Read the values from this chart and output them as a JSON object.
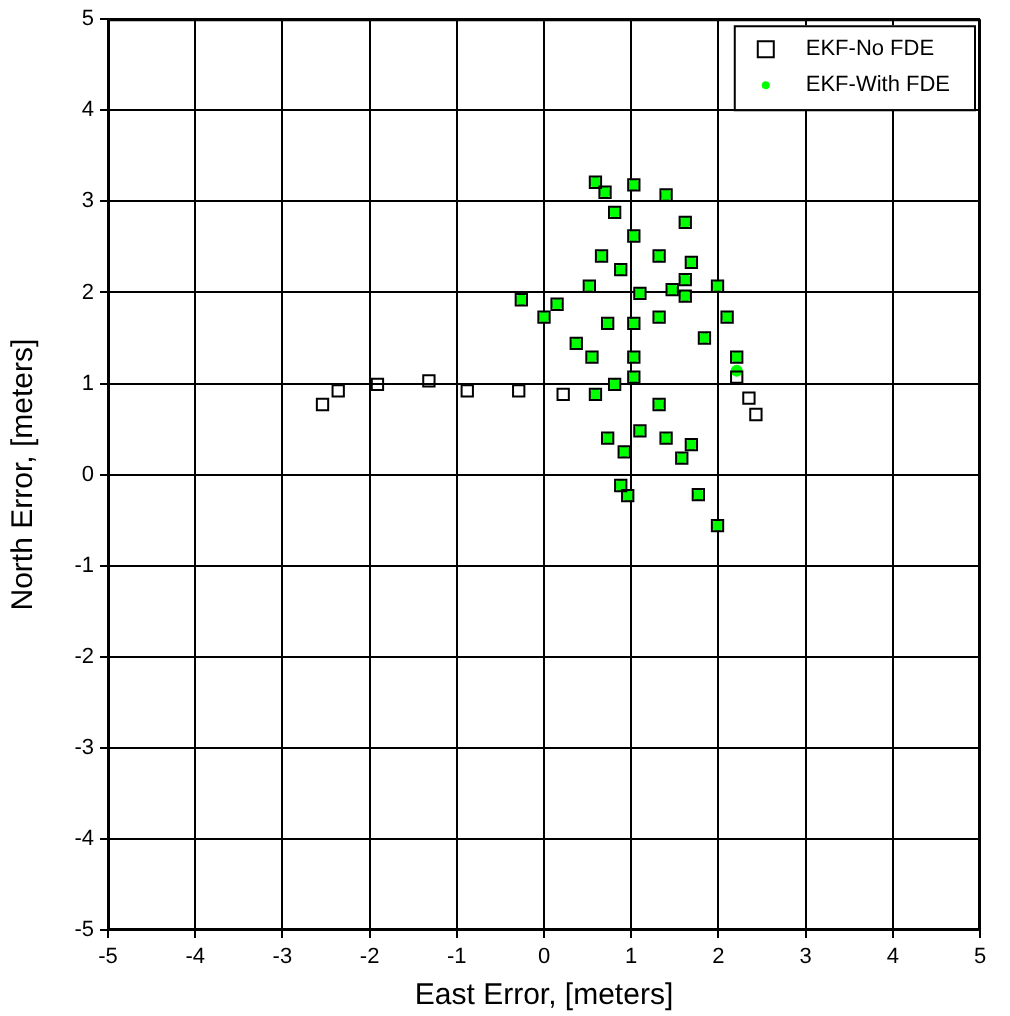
{
  "chart_data": {
    "type": "scatter",
    "xlabel": "East Error, [meters]",
    "ylabel": "North Error, [meters]",
    "xlim": [
      -5,
      5
    ],
    "ylim": [
      -5,
      5
    ],
    "xticks": [
      -5,
      -4,
      -3,
      -2,
      -1,
      0,
      1,
      2,
      3,
      4,
      5
    ],
    "yticks": [
      -5,
      -4,
      -3,
      -2,
      -1,
      0,
      1,
      2,
      3,
      4,
      5
    ],
    "grid": true,
    "legend": "top right",
    "series": [
      {
        "name": "EKF-No FDE",
        "color": "#000000",
        "marker": "square",
        "x": [
          -2.54,
          -2.36,
          -1.91,
          -1.32,
          -0.88,
          -0.29,
          0.22,
          0.59,
          0.37,
          0,
          -0.26,
          0.15,
          0.52,
          0.66,
          0.59,
          1.03,
          1.4,
          1.62,
          1.69,
          1.62,
          1.32,
          1.03,
          0.81,
          0.7,
          0.88,
          1.03,
          1.03,
          0.81,
          0.73,
          0.88,
          0.96,
          0.92,
          1.1,
          1.4,
          1.58,
          1.77,
          1.99,
          1.69,
          1.32,
          1.03,
          1.32,
          1.62,
          1.99,
          2.1,
          2.21,
          2.35,
          2.43,
          2.21,
          1.84,
          1.47,
          1.1,
          0.73,
          0.55
        ],
        "values": [
          0.77,
          0.92,
          0.99,
          1.03,
          0.92,
          0.92,
          0.88,
          0.88,
          1.44,
          1.73,
          1.92,
          1.87,
          2.07,
          2.4,
          3.21,
          3.18,
          3.07,
          2.77,
          2.33,
          2.14,
          2.4,
          2.62,
          2.88,
          3.1,
          2.25,
          1.66,
          1.29,
          0.99,
          0.4,
          -0.12,
          -0.23,
          0.25,
          0.48,
          0.4,
          0.18,
          -0.22,
          -0.56,
          0.33,
          0.77,
          1.07,
          1.73,
          1.96,
          2.07,
          1.73,
          1.29,
          0.84,
          0.66,
          1.07,
          1.5,
          2.03,
          1.99,
          1.66,
          1.29
        ]
      },
      {
        "name": "EKF-With FDE",
        "color": "#00ff00",
        "marker": "circle",
        "x": [
          0.59,
          0.37,
          0,
          -0.26,
          0.15,
          0.52,
          0.66,
          0.59,
          1.03,
          1.4,
          1.62,
          1.69,
          1.62,
          1.32,
          1.03,
          0.81,
          0.7,
          0.88,
          1.03,
          1.03,
          0.81,
          0.73,
          0.88,
          0.96,
          0.92,
          1.1,
          1.4,
          1.58,
          1.77,
          1.99,
          1.69,
          1.32,
          1.03,
          1.32,
          1.62,
          1.99,
          2.1,
          2.21,
          2.21,
          1.84,
          1.47,
          1.1,
          0.73,
          0.55
        ],
        "values": [
          0.88,
          1.44,
          1.73,
          1.92,
          1.87,
          2.07,
          2.4,
          3.21,
          3.18,
          3.07,
          2.77,
          2.33,
          2.14,
          2.4,
          2.62,
          2.88,
          3.1,
          2.25,
          1.66,
          1.29,
          0.99,
          0.4,
          -0.12,
          -0.23,
          0.25,
          0.48,
          0.4,
          0.18,
          -0.22,
          -0.56,
          0.33,
          0.77,
          1.07,
          1.73,
          1.96,
          2.07,
          1.73,
          1.29,
          1.14,
          1.5,
          2.03,
          1.99,
          1.66,
          1.29
        ]
      }
    ]
  }
}
